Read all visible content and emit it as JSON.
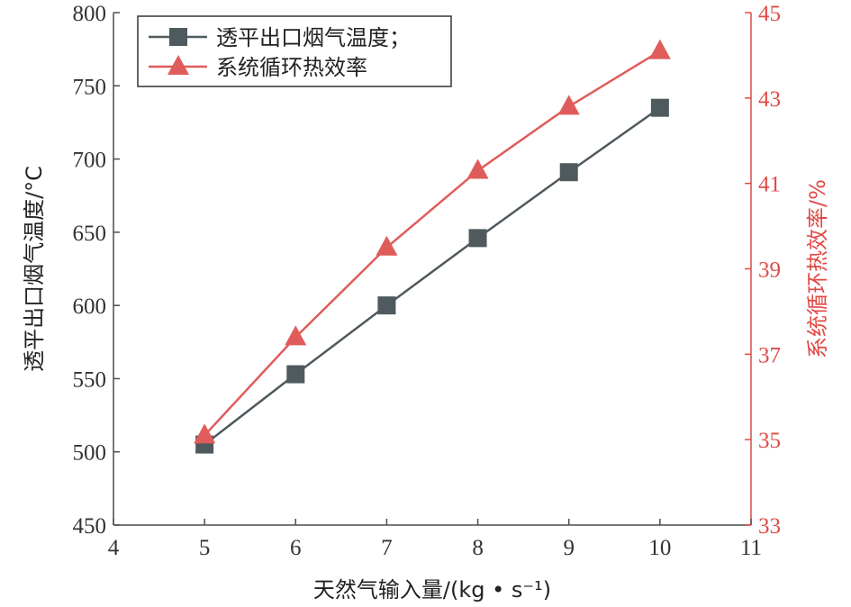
{
  "colors": {
    "left_axis": "#4d4d4d",
    "right_axis": "#e04a46",
    "series_temp": "#4f5a5e",
    "series_eff": "#e05c5a"
  },
  "chart_data": {
    "type": "line",
    "xlabel": "天然气输入量/(kg • s⁻¹)",
    "ylabel": "透平出口烟气温度/°C",
    "y2label": "系统循环热效率/%",
    "xlim": [
      4,
      11
    ],
    "ylim": [
      450,
      800
    ],
    "y2lim": [
      33,
      45
    ],
    "x_ticks": [
      "4",
      "5",
      "6",
      "7",
      "8",
      "9",
      "10",
      "11"
    ],
    "y_ticks": [
      "450",
      "500",
      "550",
      "600",
      "650",
      "700",
      "750",
      "800"
    ],
    "y2_ticks": [
      "33",
      "35",
      "37",
      "39",
      "41",
      "43",
      "45"
    ],
    "grid": false,
    "legend_position": "top-left",
    "x": [
      5,
      6,
      7,
      8,
      9,
      10
    ],
    "series": [
      {
        "name": "透平出口烟气温度；",
        "axis": "left",
        "marker": "square",
        "values": [
          505,
          553,
          600,
          646,
          691,
          735
        ]
      },
      {
        "name": "系统循环热效率",
        "axis": "right",
        "marker": "triangle",
        "values": [
          35.1,
          37.4,
          39.5,
          41.3,
          42.8,
          44.1
        ]
      }
    ]
  }
}
